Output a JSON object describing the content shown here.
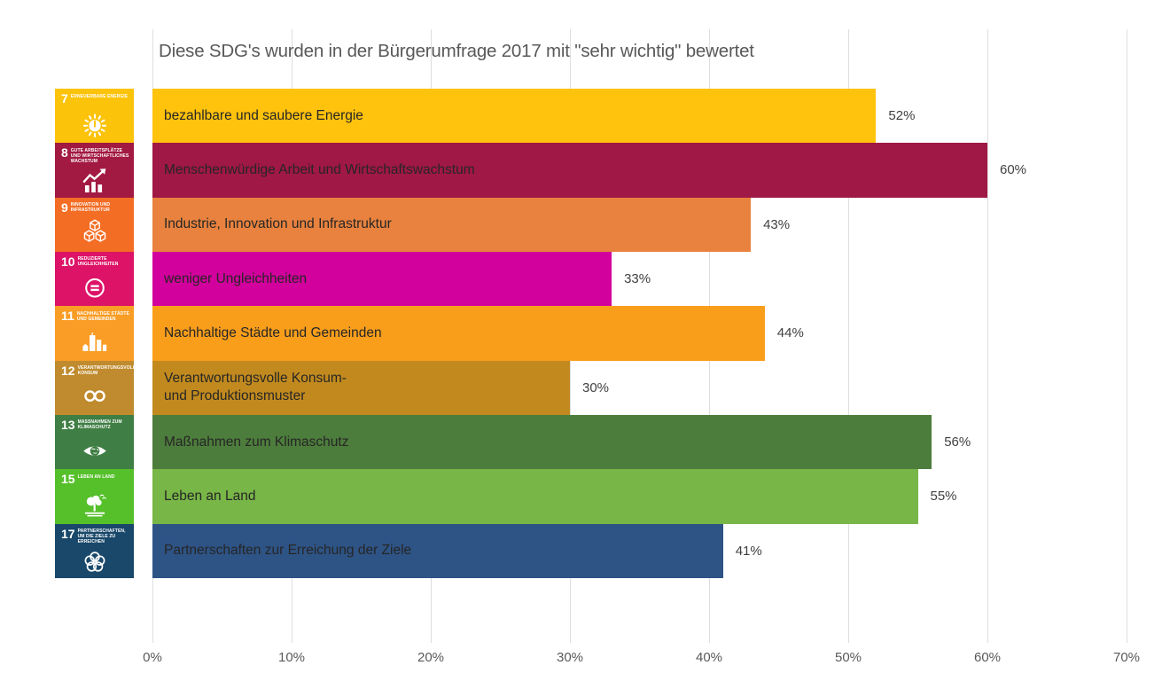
{
  "chart_data": {
    "type": "bar",
    "orientation": "horizontal",
    "title": "Diese SDG's wurden in der Bürgerumfrage 2017 mit \"sehr wichtig\" bewertet",
    "xlabel": "",
    "ylabel": "",
    "xlim": [
      0,
      70
    ],
    "x_ticks": [
      "0%",
      "10%",
      "20%",
      "30%",
      "40%",
      "50%",
      "60%",
      "70%"
    ],
    "grid": true,
    "value_labels_position": "right-of-bar",
    "rows": [
      {
        "sdg": 7,
        "label": "bezahlbare und saubere Energie",
        "value": 52,
        "value_label": "52%",
        "color": "#FFC20D"
      },
      {
        "sdg": 8,
        "label": "Menschenwürdige Arbeit und Wirtschaftswachstum",
        "value": 60,
        "value_label": "60%",
        "color": "#A01845"
      },
      {
        "sdg": 9,
        "label": "Industrie, Innovation und Infrastruktur",
        "value": 43,
        "value_label": "43%",
        "color": "#E8823E"
      },
      {
        "sdg": 10,
        "label": "weniger Ungleichheiten",
        "value": 33,
        "value_label": "33%",
        "color": "#D2009C"
      },
      {
        "sdg": 11,
        "label": "Nachhaltige Städte und Gemeinden",
        "value": 44,
        "value_label": "44%",
        "color": "#F99E1B"
      },
      {
        "sdg": 12,
        "label": "Verantwortungsvolle Konsum-\nund Produktionsmuster",
        "value": 30,
        "value_label": "30%",
        "color": "#C28A1E"
      },
      {
        "sdg": 13,
        "label": "Maßnahmen zum Klimaschutz",
        "value": 56,
        "value_label": "56%",
        "color": "#4D7D3C"
      },
      {
        "sdg": 15,
        "label": "Leben an Land",
        "value": 55,
        "value_label": "55%",
        "color": "#78B647"
      },
      {
        "sdg": 17,
        "label": "Partnerschaften zur Erreichung der Ziele",
        "value": 41,
        "value_label": "41%",
        "color": "#2E5385"
      }
    ]
  },
  "sdg_tiles": [
    {
      "number": "7",
      "title": "ERNEUERBARE ENERGIE",
      "color": "#FCC30B",
      "icon": "sun-energy-icon"
    },
    {
      "number": "8",
      "title": "GUTE ARBEITSPLÄTZE UND WIRTSCHAFTLICHES WACHSTUM",
      "color": "#A21942",
      "icon": "growth-chart-icon"
    },
    {
      "number": "9",
      "title": "INNOVATION UND INFRASTRUKTUR",
      "color": "#F36D25",
      "icon": "cubes-icon"
    },
    {
      "number": "10",
      "title": "REDUZIERTE UNGLEICHHEITEN",
      "color": "#DD1367",
      "icon": "equality-icon"
    },
    {
      "number": "11",
      "title": "NACHHALTIGE STÄDTE UND GEMEINDEN",
      "color": "#F99D26",
      "icon": "city-buildings-icon"
    },
    {
      "number": "12",
      "title": "VERANTWORTUNGSVOLLER KONSUM",
      "color": "#BF8B2E",
      "icon": "infinity-loop-icon"
    },
    {
      "number": "13",
      "title": "MASSNAHMEN ZUM KLIMASCHUTZ",
      "color": "#3F7E44",
      "icon": "eye-globe-icon"
    },
    {
      "number": "15",
      "title": "LEBEN AN LAND",
      "color": "#56C02B",
      "icon": "tree-icon"
    },
    {
      "number": "17",
      "title": "PARTNERSCHAFTEN, UM DIE ZIELE ZU ERREICHEN",
      "color": "#19486A",
      "icon": "interlocking-circles-icon"
    }
  ]
}
